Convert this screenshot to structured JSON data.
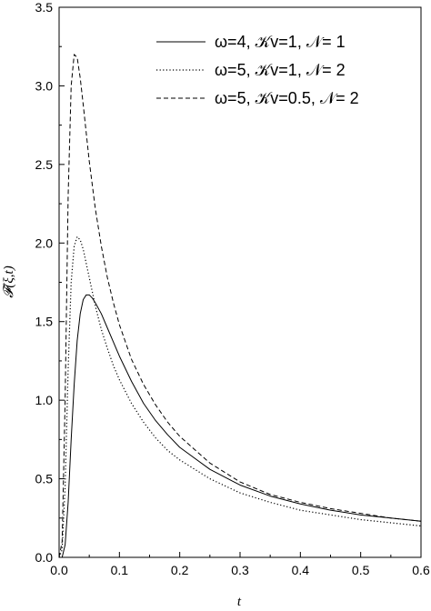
{
  "chart_data": {
    "type": "line",
    "title": "",
    "xlabel": "t",
    "ylabel": "𝓕(ξ,t)",
    "xlim": [
      0,
      0.6
    ],
    "ylim": [
      0,
      3.5
    ],
    "x_ticks": [
      0.0,
      0.1,
      0.2,
      0.3,
      0.4,
      0.5,
      0.6
    ],
    "x_tick_labels": [
      "0.0",
      "0.1",
      "0.2",
      "0.3",
      "0.4",
      "0.5",
      "0.6"
    ],
    "y_ticks": [
      0.0,
      0.5,
      1.0,
      1.5,
      2.0,
      2.5,
      3.0,
      3.5
    ],
    "y_tick_labels": [
      "0.0",
      "0.5",
      "1.0",
      "1.5",
      "2.0",
      "2.5",
      "3.0",
      "3.5"
    ],
    "grid": false,
    "legend_position": "top-right",
    "series": [
      {
        "name": "ω=4, 𝒦v=1, 𝒩= 1",
        "style": "solid",
        "color": "#000000",
        "x": [
          0.0,
          0.005,
          0.01,
          0.015,
          0.02,
          0.025,
          0.03,
          0.035,
          0.04,
          0.045,
          0.05,
          0.055,
          0.06,
          0.07,
          0.08,
          0.09,
          0.1,
          0.12,
          0.14,
          0.16,
          0.18,
          0.2,
          0.25,
          0.3,
          0.35,
          0.4,
          0.45,
          0.5,
          0.55,
          0.6
        ],
        "y": [
          0.0,
          0.0,
          0.08,
          0.35,
          0.75,
          1.1,
          1.38,
          1.55,
          1.64,
          1.67,
          1.67,
          1.65,
          1.62,
          1.55,
          1.46,
          1.37,
          1.28,
          1.12,
          0.98,
          0.87,
          0.78,
          0.7,
          0.56,
          0.46,
          0.39,
          0.34,
          0.3,
          0.27,
          0.25,
          0.23
        ]
      },
      {
        "name": "ω=5, 𝒦v=1, 𝒩= 2",
        "style": "dotted",
        "color": "#000000",
        "x": [
          0.0,
          0.005,
          0.01,
          0.015,
          0.02,
          0.025,
          0.03,
          0.035,
          0.04,
          0.045,
          0.05,
          0.06,
          0.07,
          0.08,
          0.09,
          0.1,
          0.12,
          0.14,
          0.16,
          0.18,
          0.2,
          0.25,
          0.3,
          0.35,
          0.4,
          0.45,
          0.5,
          0.55,
          0.6
        ],
        "y": [
          0.0,
          0.05,
          0.45,
          1.2,
          1.75,
          1.98,
          2.04,
          2.02,
          1.96,
          1.87,
          1.78,
          1.6,
          1.45,
          1.33,
          1.22,
          1.13,
          0.98,
          0.86,
          0.76,
          0.68,
          0.62,
          0.5,
          0.41,
          0.35,
          0.3,
          0.27,
          0.24,
          0.22,
          0.2
        ]
      },
      {
        "name": "ω=5, 𝒦v=0.5, 𝒩= 2",
        "style": "dashed",
        "color": "#000000",
        "x": [
          0.0,
          0.005,
          0.01,
          0.015,
          0.02,
          0.025,
          0.03,
          0.035,
          0.04,
          0.045,
          0.05,
          0.06,
          0.07,
          0.08,
          0.09,
          0.1,
          0.12,
          0.14,
          0.16,
          0.18,
          0.2,
          0.25,
          0.3,
          0.35,
          0.4,
          0.45,
          0.5,
          0.55,
          0.6
        ],
        "y": [
          0.0,
          0.1,
          1.0,
          2.3,
          3.0,
          3.2,
          3.18,
          3.05,
          2.88,
          2.7,
          2.52,
          2.22,
          1.98,
          1.78,
          1.62,
          1.48,
          1.26,
          1.1,
          0.97,
          0.86,
          0.77,
          0.6,
          0.48,
          0.4,
          0.35,
          0.31,
          0.28,
          0.25,
          0.23
        ]
      }
    ]
  }
}
